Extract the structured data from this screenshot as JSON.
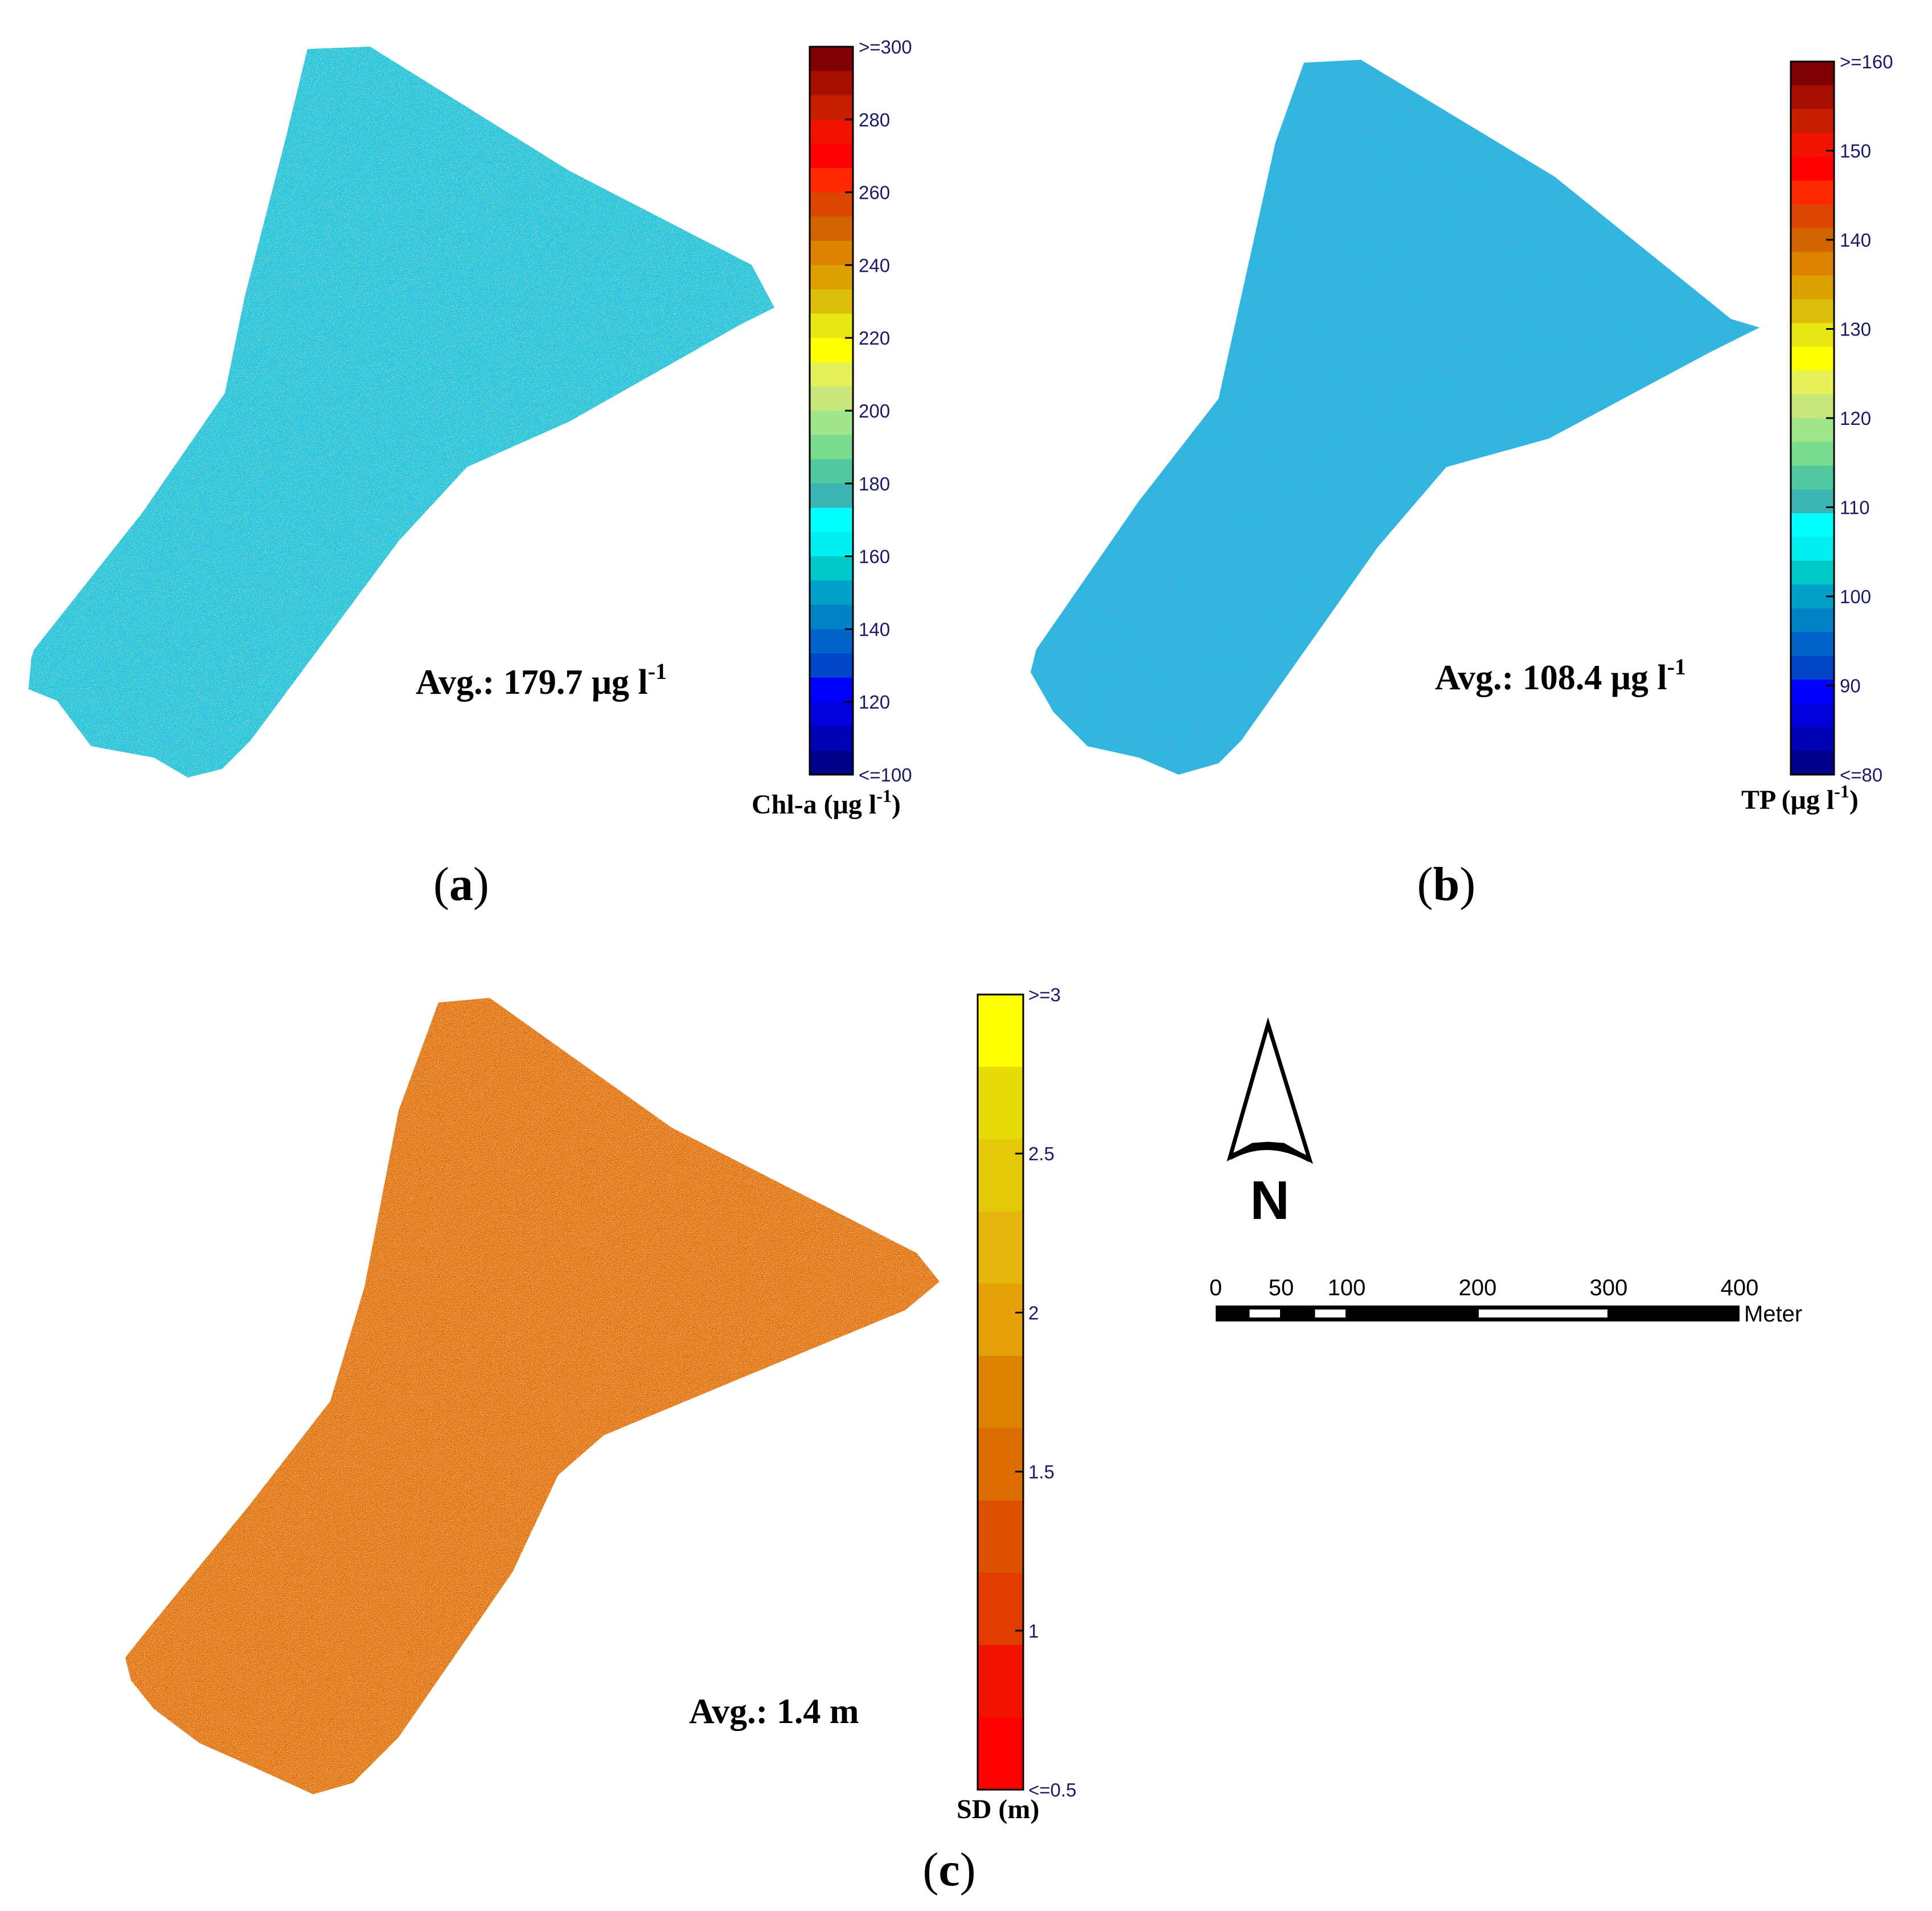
{
  "panels": [
    {
      "id": "a",
      "label": "a",
      "avg_text": "Avg.: 179.7 μg l",
      "avg_sup": "-1",
      "colorbar": {
        "title_main": "Chl-a (μg l",
        "title_sup": "-1",
        "title_end": ")",
        "ticks": [
          ">=300",
          "280",
          "260",
          "240",
          "220",
          "200",
          "180",
          "160",
          "140",
          "120",
          "<=100"
        ],
        "colors": [
          "#7f0000",
          "#a60f00",
          "#c81e00",
          "#f01400",
          "#ff0000",
          "#ff2800",
          "#dc4600",
          "#d26400",
          "#dc8200",
          "#dca000",
          "#dcbe0a",
          "#e6e614",
          "#ffff00",
          "#e6f05a",
          "#c8e678",
          "#a0e68c",
          "#78dc8c",
          "#50c8a0",
          "#3cb4b4",
          "#00ffff",
          "#00f0f0",
          "#00c8c8",
          "#00a0c8",
          "#0082c8",
          "#0064c8",
          "#0046c8",
          "#0000ff",
          "#0000dc",
          "#0000b4",
          "#00008c"
        ],
        "map_base": "#19cfe0",
        "map_speckle": [
          "#1e6ecf",
          "#d6dd3c",
          "#3cb4a0"
        ]
      }
    },
    {
      "id": "b",
      "label": "b",
      "avg_text": "Avg.: 108.4 μg l",
      "avg_sup": "-1",
      "colorbar": {
        "title_main": "TP (μg l",
        "title_sup": "-1",
        "title_end": ")",
        "ticks": [
          ">=160",
          "150",
          "140",
          "130",
          "120",
          "110",
          "100",
          "90",
          "<=80"
        ],
        "colors": [
          "#7f0000",
          "#a60f00",
          "#c81e00",
          "#f01400",
          "#ff0000",
          "#ff2800",
          "#dc4600",
          "#d26400",
          "#dc8200",
          "#dca000",
          "#dcbe0a",
          "#e6e614",
          "#ffff00",
          "#e6f05a",
          "#c8e678",
          "#a0e68c",
          "#78dc8c",
          "#50c8a0",
          "#3cb4b4",
          "#00ffff",
          "#00f0f0",
          "#00c8c8",
          "#00a0c8",
          "#0082c8",
          "#0064c8",
          "#0046c8",
          "#0000ff",
          "#0000dc",
          "#0000b4",
          "#00008c"
        ],
        "map_base": "#16c2dc",
        "map_speckle": [
          "#1a5fc6",
          "#3a8fd4",
          "#b8d84a"
        ]
      }
    },
    {
      "id": "c",
      "label": "c",
      "avg_text": "Avg.: 1.4 m",
      "avg_sup": "",
      "colorbar": {
        "title_main": "SD (m)",
        "title_sup": "",
        "title_end": "",
        "ticks": [
          ">=3",
          "2.5",
          "2",
          "1.5",
          "1",
          "<=0.5"
        ],
        "colors": [
          "#ffff00",
          "#e6dc0a",
          "#e6c80a",
          "#e6b40a",
          "#e6a00a",
          "#dc8200",
          "#dc6e00",
          "#dc5000",
          "#e03c00",
          "#f01400",
          "#ff0000"
        ],
        "map_base": "#e06a12",
        "map_speckle": [
          "#e08c22",
          "#d4540e",
          "#e4a03a"
        ]
      }
    }
  ],
  "north_arrow": {
    "letter": "N"
  },
  "scale_bar": {
    "tick_labels": [
      "0",
      "50",
      "100",
      "200",
      "300",
      "400"
    ],
    "tick_values": [
      0,
      50,
      100,
      200,
      300,
      400
    ],
    "unit": "Meter"
  }
}
